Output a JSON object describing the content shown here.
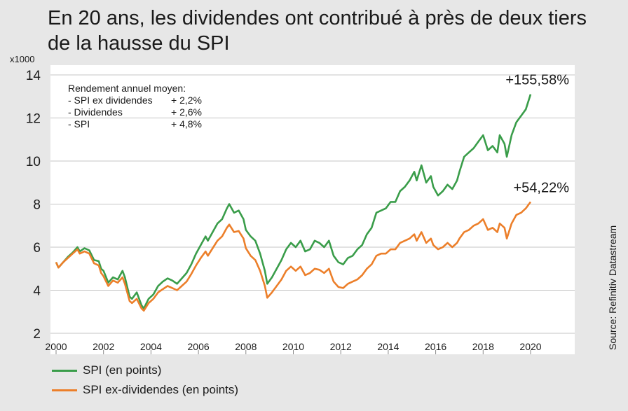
{
  "title": "En 20 ans, les dividendes ont contribué à près de deux tiers de la hausse du SPI",
  "source": "Source: Refinitiv Datastream",
  "chart_data": {
    "type": "line",
    "title": "En 20 ans, les dividendes ont contribué à près de deux tiers de la hausse du SPI",
    "y_scale_note": "x1000",
    "xlim": [
      2000,
      2021.3
    ],
    "ylim": [
      2,
      14
    ],
    "x_ticks": [
      "2000",
      "2002",
      "2004",
      "2006",
      "2008",
      "2010",
      "2012",
      "2014",
      "2016",
      "2018",
      "2020"
    ],
    "y_ticks": [
      "2",
      "4",
      "6",
      "8",
      "10",
      "12",
      "14"
    ],
    "grid": "horizontal",
    "legend_position": "bottom",
    "annotation_box": {
      "heading": "Rendement annuel moyen:",
      "rows": [
        {
          "label": "- SPI ex dividendes",
          "value": "+ 2,2%"
        },
        {
          "label": "- Dividendes",
          "value": "+ 2,6%"
        },
        {
          "label": "- SPI",
          "value": "+ 4,8%"
        }
      ]
    },
    "series": [
      {
        "name": "SPI (en points)",
        "color": "#3a9d4a",
        "end_label": "+155,58%",
        "points": [
          [
            2000.0,
            5.3
          ],
          [
            2000.1,
            5.05
          ],
          [
            2000.3,
            5.3
          ],
          [
            2000.5,
            5.55
          ],
          [
            2000.7,
            5.75
          ],
          [
            2000.9,
            6.0
          ],
          [
            2001.0,
            5.8
          ],
          [
            2001.2,
            5.95
          ],
          [
            2001.4,
            5.85
          ],
          [
            2001.6,
            5.4
          ],
          [
            2001.8,
            5.35
          ],
          [
            2001.9,
            5.0
          ],
          [
            2002.0,
            4.9
          ],
          [
            2002.2,
            4.35
          ],
          [
            2002.4,
            4.6
          ],
          [
            2002.6,
            4.5
          ],
          [
            2002.8,
            4.9
          ],
          [
            2002.9,
            4.6
          ],
          [
            2003.1,
            3.7
          ],
          [
            2003.2,
            3.6
          ],
          [
            2003.4,
            3.9
          ],
          [
            2003.6,
            3.3
          ],
          [
            2003.7,
            3.15
          ],
          [
            2003.9,
            3.6
          ],
          [
            2004.1,
            3.8
          ],
          [
            2004.3,
            4.2
          ],
          [
            2004.5,
            4.4
          ],
          [
            2004.7,
            4.55
          ],
          [
            2004.9,
            4.45
          ],
          [
            2005.1,
            4.3
          ],
          [
            2005.3,
            4.55
          ],
          [
            2005.5,
            4.8
          ],
          [
            2005.7,
            5.2
          ],
          [
            2005.9,
            5.7
          ],
          [
            2006.1,
            6.1
          ],
          [
            2006.3,
            6.5
          ],
          [
            2006.4,
            6.3
          ],
          [
            2006.6,
            6.7
          ],
          [
            2006.8,
            7.1
          ],
          [
            2007.0,
            7.3
          ],
          [
            2007.2,
            7.8
          ],
          [
            2007.3,
            8.0
          ],
          [
            2007.5,
            7.6
          ],
          [
            2007.7,
            7.7
          ],
          [
            2007.9,
            7.3
          ],
          [
            2008.0,
            6.8
          ],
          [
            2008.2,
            6.5
          ],
          [
            2008.4,
            6.3
          ],
          [
            2008.6,
            5.7
          ],
          [
            2008.8,
            4.9
          ],
          [
            2008.9,
            4.3
          ],
          [
            2009.1,
            4.6
          ],
          [
            2009.3,
            5.0
          ],
          [
            2009.5,
            5.4
          ],
          [
            2009.7,
            5.9
          ],
          [
            2009.9,
            6.2
          ],
          [
            2010.1,
            6.0
          ],
          [
            2010.3,
            6.3
          ],
          [
            2010.5,
            5.8
          ],
          [
            2010.7,
            5.9
          ],
          [
            2010.9,
            6.3
          ],
          [
            2011.1,
            6.2
          ],
          [
            2011.3,
            6.0
          ],
          [
            2011.5,
            6.3
          ],
          [
            2011.7,
            5.6
          ],
          [
            2011.9,
            5.3
          ],
          [
            2012.1,
            5.2
          ],
          [
            2012.3,
            5.5
          ],
          [
            2012.5,
            5.6
          ],
          [
            2012.7,
            5.9
          ],
          [
            2012.9,
            6.1
          ],
          [
            2013.1,
            6.6
          ],
          [
            2013.3,
            6.9
          ],
          [
            2013.5,
            7.6
          ],
          [
            2013.7,
            7.7
          ],
          [
            2013.9,
            7.8
          ],
          [
            2014.1,
            8.1
          ],
          [
            2014.3,
            8.1
          ],
          [
            2014.5,
            8.6
          ],
          [
            2014.7,
            8.8
          ],
          [
            2014.9,
            9.1
          ],
          [
            2015.1,
            9.5
          ],
          [
            2015.2,
            9.1
          ],
          [
            2015.4,
            9.8
          ],
          [
            2015.6,
            9.0
          ],
          [
            2015.8,
            9.3
          ],
          [
            2015.9,
            8.8
          ],
          [
            2016.1,
            8.4
          ],
          [
            2016.3,
            8.6
          ],
          [
            2016.5,
            8.9
          ],
          [
            2016.7,
            8.7
          ],
          [
            2016.9,
            9.1
          ],
          [
            2017.0,
            9.5
          ],
          [
            2017.2,
            10.2
          ],
          [
            2017.4,
            10.4
          ],
          [
            2017.6,
            10.6
          ],
          [
            2017.8,
            10.9
          ],
          [
            2018.0,
            11.2
          ],
          [
            2018.2,
            10.5
          ],
          [
            2018.4,
            10.7
          ],
          [
            2018.6,
            10.4
          ],
          [
            2018.7,
            11.2
          ],
          [
            2018.9,
            10.8
          ],
          [
            2019.0,
            10.2
          ],
          [
            2019.2,
            11.2
          ],
          [
            2019.4,
            11.8
          ],
          [
            2019.6,
            12.1
          ],
          [
            2019.8,
            12.4
          ],
          [
            2020.0,
            13.1
          ]
        ]
      },
      {
        "name": "SPI ex-dividendes (en points)",
        "color": "#ec7f2a",
        "end_label": "+54,22%",
        "points": [
          [
            2000.0,
            5.3
          ],
          [
            2000.1,
            5.05
          ],
          [
            2000.3,
            5.3
          ],
          [
            2000.5,
            5.5
          ],
          [
            2000.7,
            5.7
          ],
          [
            2000.9,
            5.9
          ],
          [
            2001.0,
            5.7
          ],
          [
            2001.2,
            5.8
          ],
          [
            2001.4,
            5.7
          ],
          [
            2001.6,
            5.25
          ],
          [
            2001.8,
            5.15
          ],
          [
            2001.9,
            4.8
          ],
          [
            2002.0,
            4.65
          ],
          [
            2002.2,
            4.2
          ],
          [
            2002.4,
            4.45
          ],
          [
            2002.6,
            4.35
          ],
          [
            2002.8,
            4.6
          ],
          [
            2002.9,
            4.3
          ],
          [
            2003.1,
            3.5
          ],
          [
            2003.2,
            3.4
          ],
          [
            2003.4,
            3.6
          ],
          [
            2003.6,
            3.15
          ],
          [
            2003.7,
            3.05
          ],
          [
            2003.9,
            3.4
          ],
          [
            2004.1,
            3.6
          ],
          [
            2004.3,
            3.9
          ],
          [
            2004.5,
            4.05
          ],
          [
            2004.7,
            4.2
          ],
          [
            2004.9,
            4.1
          ],
          [
            2005.1,
            4.0
          ],
          [
            2005.3,
            4.2
          ],
          [
            2005.5,
            4.4
          ],
          [
            2005.7,
            4.75
          ],
          [
            2005.9,
            5.15
          ],
          [
            2006.1,
            5.5
          ],
          [
            2006.3,
            5.8
          ],
          [
            2006.4,
            5.6
          ],
          [
            2006.6,
            5.95
          ],
          [
            2006.8,
            6.3
          ],
          [
            2007.0,
            6.5
          ],
          [
            2007.2,
            6.9
          ],
          [
            2007.3,
            7.05
          ],
          [
            2007.5,
            6.7
          ],
          [
            2007.7,
            6.75
          ],
          [
            2007.9,
            6.4
          ],
          [
            2008.0,
            5.95
          ],
          [
            2008.2,
            5.6
          ],
          [
            2008.4,
            5.4
          ],
          [
            2008.6,
            4.9
          ],
          [
            2008.8,
            4.2
          ],
          [
            2008.9,
            3.65
          ],
          [
            2009.1,
            3.9
          ],
          [
            2009.3,
            4.2
          ],
          [
            2009.5,
            4.5
          ],
          [
            2009.7,
            4.9
          ],
          [
            2009.9,
            5.1
          ],
          [
            2010.1,
            4.9
          ],
          [
            2010.3,
            5.1
          ],
          [
            2010.5,
            4.7
          ],
          [
            2010.7,
            4.8
          ],
          [
            2010.9,
            5.0
          ],
          [
            2011.1,
            4.95
          ],
          [
            2011.3,
            4.8
          ],
          [
            2011.5,
            5.0
          ],
          [
            2011.7,
            4.4
          ],
          [
            2011.9,
            4.15
          ],
          [
            2012.1,
            4.1
          ],
          [
            2012.3,
            4.3
          ],
          [
            2012.5,
            4.4
          ],
          [
            2012.7,
            4.5
          ],
          [
            2012.9,
            4.7
          ],
          [
            2013.1,
            5.0
          ],
          [
            2013.3,
            5.2
          ],
          [
            2013.5,
            5.6
          ],
          [
            2013.7,
            5.7
          ],
          [
            2013.9,
            5.7
          ],
          [
            2014.1,
            5.9
          ],
          [
            2014.3,
            5.9
          ],
          [
            2014.5,
            6.2
          ],
          [
            2014.7,
            6.3
          ],
          [
            2014.9,
            6.4
          ],
          [
            2015.1,
            6.6
          ],
          [
            2015.2,
            6.3
          ],
          [
            2015.4,
            6.7
          ],
          [
            2015.6,
            6.2
          ],
          [
            2015.8,
            6.4
          ],
          [
            2015.9,
            6.1
          ],
          [
            2016.1,
            5.9
          ],
          [
            2016.3,
            6.0
          ],
          [
            2016.5,
            6.2
          ],
          [
            2016.7,
            6.0
          ],
          [
            2016.9,
            6.2
          ],
          [
            2017.0,
            6.4
          ],
          [
            2017.2,
            6.7
          ],
          [
            2017.4,
            6.8
          ],
          [
            2017.6,
            7.0
          ],
          [
            2017.8,
            7.1
          ],
          [
            2018.0,
            7.3
          ],
          [
            2018.2,
            6.8
          ],
          [
            2018.4,
            6.9
          ],
          [
            2018.6,
            6.7
          ],
          [
            2018.7,
            7.1
          ],
          [
            2018.9,
            6.9
          ],
          [
            2019.0,
            6.4
          ],
          [
            2019.2,
            7.1
          ],
          [
            2019.4,
            7.5
          ],
          [
            2019.6,
            7.6
          ],
          [
            2019.8,
            7.8
          ],
          [
            2020.0,
            8.1
          ]
        ]
      }
    ]
  }
}
